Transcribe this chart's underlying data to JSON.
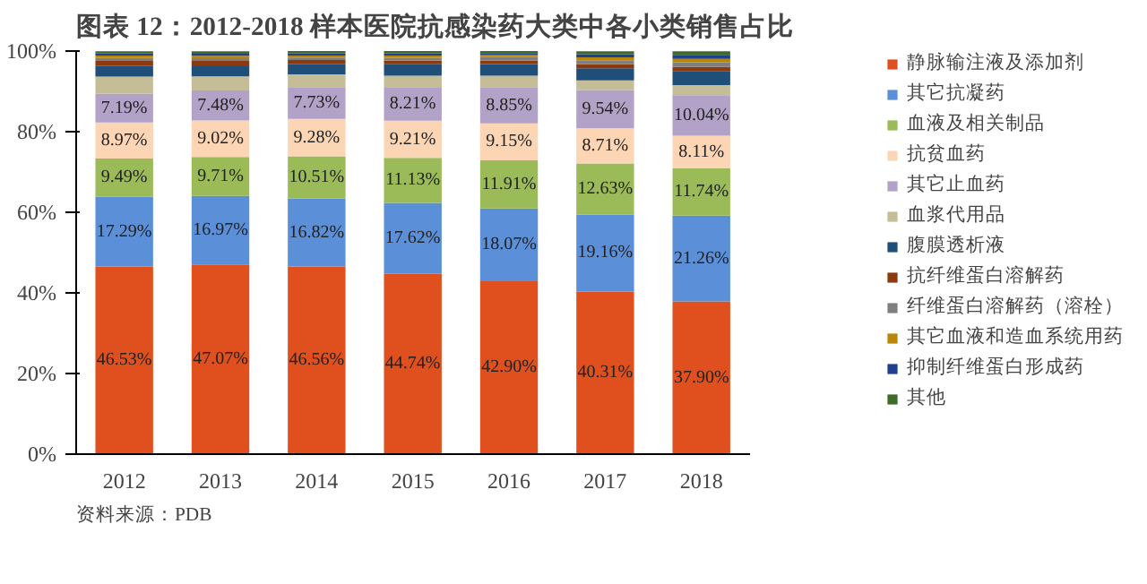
{
  "chart_data": {
    "type": "bar",
    "stacked": true,
    "title": "图表 12：2012-2018 样本医院抗感染药大类中各小类销售占比",
    "categories": [
      "2012",
      "2013",
      "2014",
      "2015",
      "2016",
      "2017",
      "2018"
    ],
    "series": [
      {
        "name": "静脉输注液及添加剂",
        "color": "#e0501f",
        "values": [
          46.53,
          47.07,
          46.56,
          44.74,
          42.9,
          40.31,
          37.9
        ],
        "value_labels": [
          "46.53%",
          "47.07%",
          "46.56%",
          "44.74%",
          "42.90%",
          "40.31%",
          "37.90%"
        ]
      },
      {
        "name": "其它抗凝药",
        "color": "#5b8fd8",
        "values": [
          17.29,
          16.97,
          16.82,
          17.62,
          18.07,
          19.16,
          21.26
        ],
        "value_labels": [
          "17.29%",
          "16.97%",
          "16.82%",
          "17.62%",
          "18.07%",
          "19.16%",
          "21.26%"
        ]
      },
      {
        "name": "血液及相关制品",
        "color": "#9bbb59",
        "values": [
          9.49,
          9.71,
          10.51,
          11.13,
          11.91,
          12.63,
          11.74
        ],
        "value_labels": [
          "9.49%",
          "9.71%",
          "10.51%",
          "11.13%",
          "11.91%",
          "12.63%",
          "11.74%"
        ]
      },
      {
        "name": "抗贫血药",
        "color": "#fcd5b5",
        "values": [
          8.97,
          9.02,
          9.28,
          9.21,
          9.15,
          8.71,
          8.11
        ],
        "value_labels": [
          "8.97%",
          "9.02%",
          "9.28%",
          "9.21%",
          "9.15%",
          "8.71%",
          "8.11%"
        ]
      },
      {
        "name": "其它止血药",
        "color": "#b3a2c7",
        "values": [
          7.19,
          7.48,
          7.73,
          8.21,
          8.85,
          9.54,
          10.04
        ],
        "value_labels": [
          "7.19%",
          "7.48%",
          "7.73%",
          "8.21%",
          "8.85%",
          "9.54%",
          "10.04%"
        ]
      },
      {
        "name": "血浆代用品",
        "color": "#c4bd97",
        "values": [
          4.2,
          3.5,
          3.3,
          3.0,
          3.0,
          2.4,
          2.5
        ]
      },
      {
        "name": "腹膜透析液",
        "color": "#1f4e79",
        "values": [
          2.6,
          2.5,
          2.5,
          2.8,
          2.9,
          3.0,
          3.5
        ]
      },
      {
        "name": "抗纤维蛋白溶解药",
        "color": "#8b3a0f",
        "values": [
          1.3,
          1.3,
          1.1,
          0.9,
          0.9,
          1.0,
          1.0
        ]
      },
      {
        "name": "纤维蛋白溶解药（溶栓）",
        "color": "#7f7f7f",
        "values": [
          0.7,
          0.7,
          0.6,
          0.7,
          0.8,
          1.0,
          1.2
        ]
      },
      {
        "name": "其它血液和造血系统用药",
        "color": "#b8860b",
        "values": [
          0.6,
          0.6,
          0.5,
          0.6,
          0.5,
          0.7,
          0.8
        ]
      },
      {
        "name": "抑制纤维蛋白形成药",
        "color": "#1f3f8f",
        "values": [
          0.5,
          0.5,
          0.5,
          0.5,
          0.5,
          0.8,
          1.0
        ]
      },
      {
        "name": "其他",
        "color": "#3e6b2a",
        "values": [
          0.6,
          0.6,
          0.6,
          0.6,
          0.5,
          0.7,
          0.9
        ]
      }
    ],
    "ylim": [
      0,
      100
    ],
    "yticks": [
      {
        "value": 0,
        "label": "0%"
      },
      {
        "value": 20,
        "label": "20%"
      },
      {
        "value": 40,
        "label": "40%"
      },
      {
        "value": 60,
        "label": "60%"
      },
      {
        "value": 80,
        "label": "80%"
      },
      {
        "value": 100,
        "label": "100%"
      }
    ],
    "grid": false,
    "legend": "right",
    "annotations": [
      "资料来源：PDB"
    ]
  }
}
